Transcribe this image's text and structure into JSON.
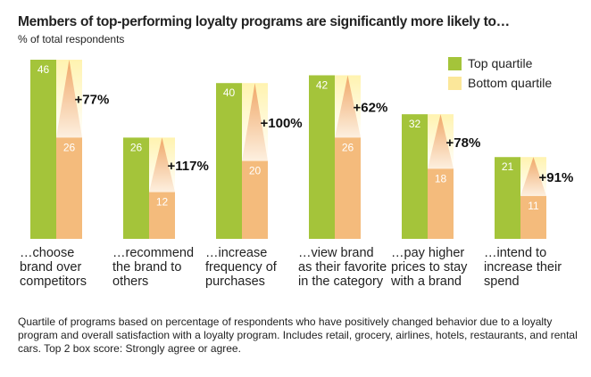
{
  "chart_data": {
    "type": "bar",
    "title": "Members of top-performing loyalty programs are significantly more likely to…",
    "subtitle": "% of total respondents",
    "categories": [
      "…choose brand over competitors",
      "…recommend the brand to others",
      "…increase frequency of purchases",
      "…view brand as their favorite in the category",
      "…pay higher prices to stay with a brand",
      "…intend to increase their spend"
    ],
    "series": [
      {
        "name": "Top quartile",
        "color": "#a4c43a",
        "values": [
          46,
          26,
          40,
          42,
          32,
          21
        ]
      },
      {
        "name": "Bottom quartile",
        "color": "#f4bb7c",
        "values": [
          26,
          12,
          20,
          26,
          18,
          11
        ]
      }
    ],
    "differences": [
      "+77%",
      "+117%",
      "+100%",
      "+62%",
      "+78%",
      "+91%"
    ],
    "legend_position": "top-right",
    "grid": false,
    "ylim": [
      0,
      46
    ]
  },
  "footnote": "Quartile of programs based on percentage of respondents who have positively changed behavior due to a loyalty program and overall satisfaction with a loyalty program. Includes retail, grocery, airlines, hotels, restaurants, and rental cars. Top 2 box score: Strongly agree or agree."
}
